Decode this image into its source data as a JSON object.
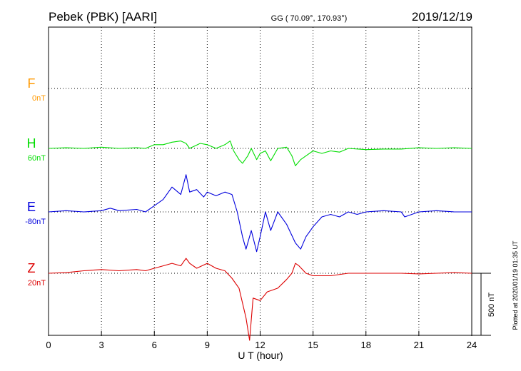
{
  "header": {
    "station": "Pebek (PBK)  [AARI]",
    "coords": "GG ( 70.09°, 170.93°)",
    "date": "2019/12/19"
  },
  "side_note": "Plotted at 2020/01/19 01:35 UT",
  "scale_label": "500 nT",
  "chart_data": {
    "type": "line",
    "xlabel": "U T (hour)",
    "xlim": [
      0,
      24
    ],
    "x_ticks": [
      0,
      3,
      6,
      9,
      12,
      15,
      18,
      21,
      24
    ],
    "x_tick_labels": [
      "0",
      "3",
      "6",
      "9",
      "12",
      "15",
      "18",
      "21",
      "24"
    ],
    "scale_bar_nT": 500,
    "grid": true,
    "series": [
      {
        "name": "F",
        "offset_label": "0nT",
        "color": "#ff9900",
        "x": [],
        "y": []
      },
      {
        "name": "H",
        "offset_label": "60nT",
        "color": "#00dd00",
        "x": [
          0,
          1,
          2,
          3,
          4,
          5,
          5.5,
          6,
          6.5,
          7,
          7.5,
          7.8,
          8,
          8.3,
          8.6,
          9,
          9.5,
          10,
          10.3,
          10.5,
          10.8,
          11,
          11.3,
          11.5,
          11.8,
          12,
          12.3,
          12.6,
          13,
          13.5,
          13.8,
          14,
          14.3,
          14.6,
          15,
          15.5,
          16,
          16.5,
          17,
          18,
          19,
          20,
          21,
          22,
          23,
          24
        ],
        "y": [
          0,
          5,
          0,
          10,
          0,
          5,
          0,
          30,
          30,
          50,
          60,
          40,
          0,
          20,
          40,
          30,
          0,
          30,
          60,
          -20,
          -90,
          -120,
          -60,
          0,
          -90,
          -40,
          -20,
          -100,
          0,
          10,
          -60,
          -140,
          -90,
          -60,
          -20,
          -40,
          -20,
          -30,
          0,
          -10,
          -5,
          -5,
          5,
          0,
          5,
          0
        ]
      },
      {
        "name": "E",
        "offset_label": "-80nT",
        "color": "#0000dd",
        "x": [
          0,
          1,
          2,
          3,
          3.5,
          4,
          5,
          5.5,
          6,
          6.5,
          7,
          7.5,
          7.8,
          8,
          8.4,
          8.8,
          9,
          9.5,
          10,
          10.4,
          10.7,
          11,
          11.2,
          11.5,
          11.8,
          12,
          12.3,
          12.6,
          13,
          13.5,
          14,
          14.3,
          14.6,
          15,
          15.5,
          16,
          16.5,
          17,
          17.5,
          18,
          19,
          20,
          20.2,
          21,
          22,
          23,
          24
        ],
        "y": [
          0,
          10,
          0,
          10,
          30,
          10,
          20,
          0,
          50,
          100,
          200,
          140,
          300,
          160,
          180,
          120,
          160,
          130,
          160,
          140,
          0,
          -200,
          -300,
          -150,
          -320,
          -200,
          0,
          -150,
          0,
          -100,
          -250,
          -300,
          -200,
          -120,
          -40,
          -20,
          -40,
          0,
          -20,
          0,
          10,
          0,
          -40,
          0,
          10,
          0,
          0
        ]
      },
      {
        "name": "Z",
        "offset_label": "20nT",
        "color": "#dd0000",
        "x": [
          0,
          1,
          2,
          3,
          4,
          5,
          5.5,
          6,
          6.5,
          7,
          7.5,
          7.8,
          8,
          8.4,
          9,
          9.5,
          10,
          10.4,
          10.8,
          11,
          11.2,
          11.4,
          11.6,
          12,
          12.4,
          13,
          13.5,
          13.8,
          14,
          14.2,
          14.6,
          15,
          16,
          17,
          18,
          19,
          20,
          21,
          22,
          23,
          24
        ],
        "y": [
          0,
          5,
          20,
          30,
          20,
          30,
          20,
          40,
          60,
          80,
          60,
          120,
          80,
          40,
          80,
          40,
          20,
          -40,
          -120,
          -240,
          -360,
          -540,
          -200,
          -220,
          -150,
          -120,
          -50,
          0,
          80,
          60,
          0,
          -20,
          -20,
          0,
          0,
          0,
          0,
          -5,
          0,
          5,
          0
        ]
      }
    ]
  }
}
